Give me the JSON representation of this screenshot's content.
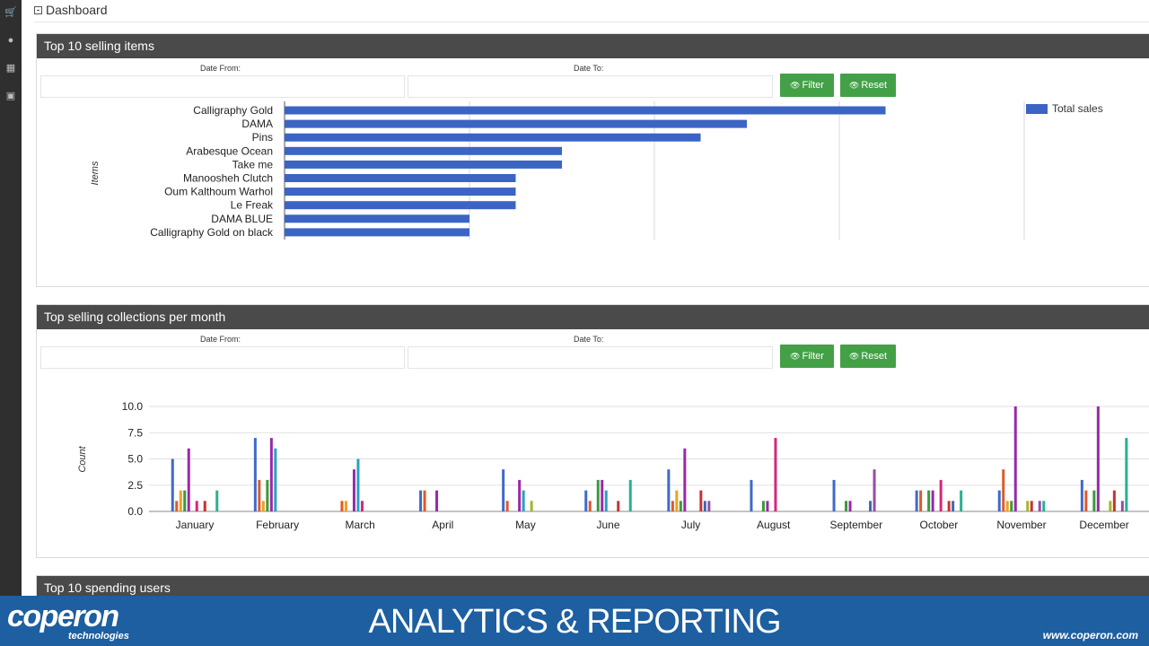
{
  "breadcrumb": {
    "label": "Dashboard"
  },
  "rail": {
    "icons": [
      "cart-icon",
      "globe-icon",
      "trash-icon",
      "inbox-icon"
    ]
  },
  "panel1": {
    "title": "Top 10 selling items",
    "date_from_label": "Date From:",
    "date_to_label": "Date To:",
    "date_from_value": "",
    "date_to_value": "",
    "filter_label": "Filter",
    "reset_label": "Reset"
  },
  "panel2": {
    "title": "Top selling collections per month",
    "date_from_label": "Date From:",
    "date_to_label": "Date To:",
    "date_from_value": "",
    "date_to_value": "",
    "filter_label": "Filter",
    "reset_label": "Reset"
  },
  "panel3": {
    "title": "Top 10 spending users"
  },
  "banner": {
    "logo": "coperon",
    "logo_sub": "technologies",
    "title": "ANALYTICS & REPORTING",
    "url": "www.coperon.com"
  },
  "chart_data": [
    {
      "type": "bar",
      "orientation": "horizontal",
      "categories": [
        "Calligraphy Gold",
        "DAMA",
        "Pins",
        "Arabesque Ocean",
        "Take me",
        "Manoosheh Clutch",
        "Oum Kalthoum Warhol",
        "Le Freak",
        "DAMA BLUE",
        "Calligraphy Gold on black"
      ],
      "series": [
        {
          "name": "Total sales",
          "values": [
            13,
            10,
            9,
            6,
            6,
            5,
            5,
            5,
            4,
            4
          ]
        }
      ],
      "xlim": [
        0,
        16
      ],
      "ylabel": "Items",
      "legend": "top-right",
      "color": "#3b64c4"
    },
    {
      "type": "bar",
      "categories": [
        "January",
        "February",
        "March",
        "April",
        "May",
        "June",
        "July",
        "August",
        "September",
        "October",
        "November",
        "December"
      ],
      "ylabel": "Count",
      "ylim": [
        0,
        10
      ],
      "yticks": [
        "0.0",
        "2.5",
        "5.0",
        "7.5",
        "10.0"
      ],
      "grid": true,
      "colors": [
        "#4169c8",
        "#dc5a2c",
        "#f0a020",
        "#3c9a3c",
        "#9a28a8",
        "#2aa0c0",
        "#d4287a",
        "#a0b828",
        "#c83232",
        "#3a6ab0",
        "#9a4aa8",
        "#2ab090"
      ],
      "series": [
        {
          "values": [
            5,
            7,
            0,
            2,
            4,
            2,
            4,
            3,
            3,
            2,
            2,
            3
          ]
        },
        {
          "values": [
            1,
            3,
            1,
            2,
            1,
            1,
            1,
            0,
            0,
            2,
            4,
            2
          ]
        },
        {
          "values": [
            2,
            1,
            1,
            0,
            0,
            0,
            2,
            0,
            0,
            0,
            1,
            0
          ]
        },
        {
          "values": [
            2,
            3,
            0,
            0,
            0,
            3,
            1,
            1,
            1,
            2,
            1,
            2
          ]
        },
        {
          "values": [
            6,
            7,
            4,
            2,
            3,
            3,
            6,
            1,
            1,
            2,
            10,
            10
          ]
        },
        {
          "values": [
            0,
            6,
            5,
            0,
            2,
            2,
            0,
            0,
            0,
            0,
            0,
            0
          ]
        },
        {
          "values": [
            1,
            0,
            1,
            0,
            0,
            0,
            0,
            7,
            0,
            3,
            0,
            0
          ]
        },
        {
          "values": [
            0,
            0,
            0,
            0,
            1,
            0,
            0,
            0,
            0,
            0,
            1,
            1
          ]
        },
        {
          "values": [
            1,
            0,
            0,
            0,
            0,
            1,
            2,
            0,
            0,
            1,
            1,
            2
          ]
        },
        {
          "values": [
            0,
            0,
            0,
            0,
            0,
            0,
            1,
            0,
            1,
            1,
            0,
            0
          ]
        },
        {
          "values": [
            0,
            0,
            0,
            0,
            0,
            0,
            1,
            0,
            4,
            0,
            1,
            1
          ]
        },
        {
          "values": [
            2,
            0,
            0,
            0,
            0,
            3,
            0,
            0,
            0,
            2,
            1,
            7
          ]
        }
      ]
    }
  ]
}
